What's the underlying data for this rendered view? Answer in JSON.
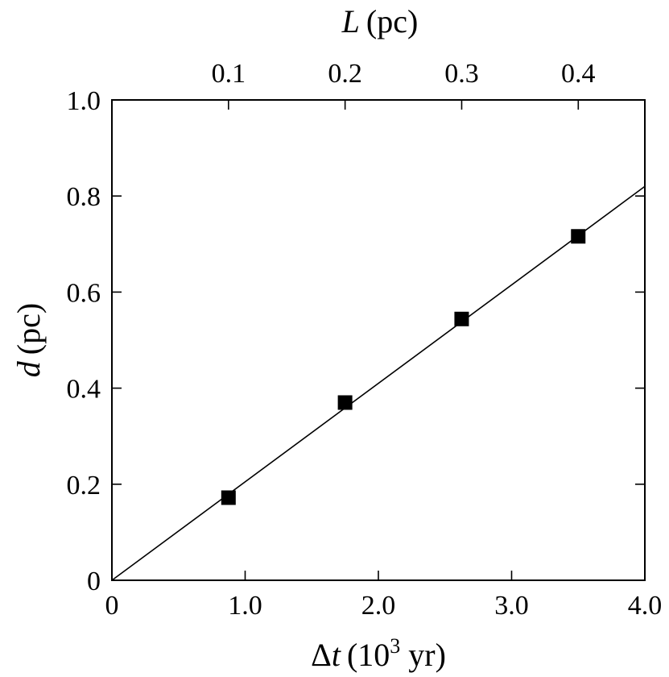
{
  "chart_data": {
    "type": "scatter",
    "title": "",
    "xlabel": {
      "symbol": "Δ",
      "var": "t",
      "unit_open": "(10",
      "unit_exp": "3",
      "unit_close": " yr)"
    },
    "ylabel": {
      "var": "d",
      "unit": "(pc)"
    },
    "x2label": {
      "var": "L",
      "unit": "(pc)"
    },
    "xlim": [
      0,
      4.0
    ],
    "ylim": [
      0,
      1.0
    ],
    "x2lim": [
      0,
      0.4571
    ],
    "x_ticks": [
      {
        "value": 0,
        "label": "0"
      },
      {
        "value": 1.0,
        "label": "1.0"
      },
      {
        "value": 2.0,
        "label": "2.0"
      },
      {
        "value": 3.0,
        "label": "3.0"
      },
      {
        "value": 4.0,
        "label": "4.0"
      }
    ],
    "y_ticks": [
      {
        "value": 0,
        "label": "0"
      },
      {
        "value": 0.2,
        "label": "0.2"
      },
      {
        "value": 0.4,
        "label": "0.4"
      },
      {
        "value": 0.6,
        "label": "0.6"
      },
      {
        "value": 0.8,
        "label": "0.8"
      },
      {
        "value": 1.0,
        "label": "1.0"
      }
    ],
    "x2_ticks": [
      {
        "value": 0.1,
        "label": "0.1"
      },
      {
        "value": 0.2,
        "label": "0.2"
      },
      {
        "value": 0.3,
        "label": "0.3"
      },
      {
        "value": 0.4,
        "label": "0.4"
      }
    ],
    "series": [
      {
        "marker": "square",
        "color": "#000000",
        "points": [
          {
            "x": 0.875,
            "y": 0.172
          },
          {
            "x": 1.75,
            "y": 0.37
          },
          {
            "x": 2.625,
            "y": 0.544
          },
          {
            "x": 3.5,
            "y": 0.716
          }
        ]
      }
    ],
    "fit_line": {
      "x": [
        0,
        4.0
      ],
      "y": [
        0,
        0.82
      ],
      "color": "#000000"
    },
    "grid": false,
    "legend": "none"
  }
}
